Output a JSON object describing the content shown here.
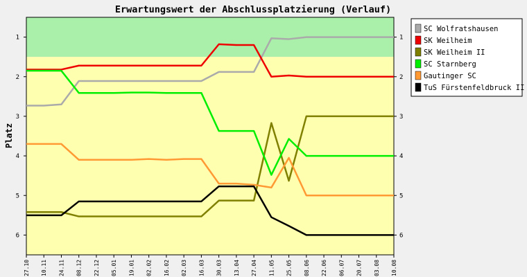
{
  "chart_data": {
    "type": "line",
    "title": "Erwartungswert der Abschlussplatzierung (Verlauf)",
    "ylabel": "Platz",
    "xlabel": "",
    "ylim": [
      6.5,
      0.5
    ],
    "y_ticks": [
      1,
      2,
      3,
      4,
      5,
      6
    ],
    "y_inverted": true,
    "grid": false,
    "legend_position": "right",
    "bands": [
      {
        "from": 0.5,
        "to": 1.5,
        "color": "#aaf0aa"
      },
      {
        "from": 1.5,
        "to": 6.5,
        "color": "#ffffb0"
      }
    ],
    "categories": [
      "27.10",
      "10.11",
      "24.11",
      "08.12",
      "22.12",
      "05.01",
      "19.01",
      "02.02",
      "16.02",
      "02.03",
      "16.03",
      "30.03",
      "13.04",
      "27.04",
      "11.05",
      "25.05",
      "08.06",
      "22.06",
      "06.07",
      "20.07",
      "03.08",
      "10.08"
    ],
    "series": [
      {
        "name": "SC Wolfratshausen",
        "color": "#aaaaaa",
        "values": [
          2.73,
          2.73,
          2.7,
          2.11,
          2.11,
          2.11,
          2.11,
          2.11,
          2.11,
          2.11,
          2.11,
          1.88,
          1.88,
          1.88,
          1.03,
          1.05,
          1.0,
          1.0,
          1.0,
          1.0,
          1.0,
          1.0
        ]
      },
      {
        "name": "SK Weilheim",
        "color": "#ee0000",
        "values": [
          1.82,
          1.82,
          1.82,
          1.72,
          1.72,
          1.72,
          1.72,
          1.72,
          1.72,
          1.72,
          1.72,
          1.18,
          1.2,
          1.2,
          2.0,
          1.97,
          2.0,
          2.0,
          2.0,
          2.0,
          2.0,
          2.0
        ]
      },
      {
        "name": "SK Weilheim II",
        "color": "#808000",
        "values": [
          5.42,
          5.42,
          5.42,
          5.53,
          5.53,
          5.53,
          5.53,
          5.53,
          5.53,
          5.53,
          5.53,
          5.13,
          5.13,
          5.13,
          3.17,
          4.63,
          3.0,
          3.0,
          3.0,
          3.0,
          3.0,
          3.0
        ]
      },
      {
        "name": "SC Starnberg",
        "color": "#00ee00",
        "values": [
          1.85,
          1.85,
          1.85,
          2.41,
          2.41,
          2.41,
          2.4,
          2.4,
          2.41,
          2.41,
          2.41,
          3.37,
          3.37,
          3.37,
          4.48,
          3.57,
          4.0,
          4.0,
          4.0,
          4.0,
          4.0,
          4.0
        ]
      },
      {
        "name": "Gautinger SC",
        "color": "#ff9933",
        "values": [
          3.7,
          3.7,
          3.7,
          4.1,
          4.1,
          4.1,
          4.1,
          4.08,
          4.1,
          4.08,
          4.08,
          4.7,
          4.7,
          4.73,
          4.8,
          4.05,
          5.0,
          5.0,
          5.0,
          5.0,
          5.0,
          5.0
        ]
      },
      {
        "name": "TuS Fürstenfeldbruck II",
        "color": "#000000",
        "values": [
          5.5,
          5.5,
          5.5,
          5.15,
          5.15,
          5.15,
          5.15,
          5.15,
          5.15,
          5.15,
          5.15,
          4.77,
          4.77,
          4.77,
          5.55,
          5.77,
          6.0,
          6.0,
          6.0,
          6.0,
          6.0,
          6.0
        ]
      }
    ]
  }
}
